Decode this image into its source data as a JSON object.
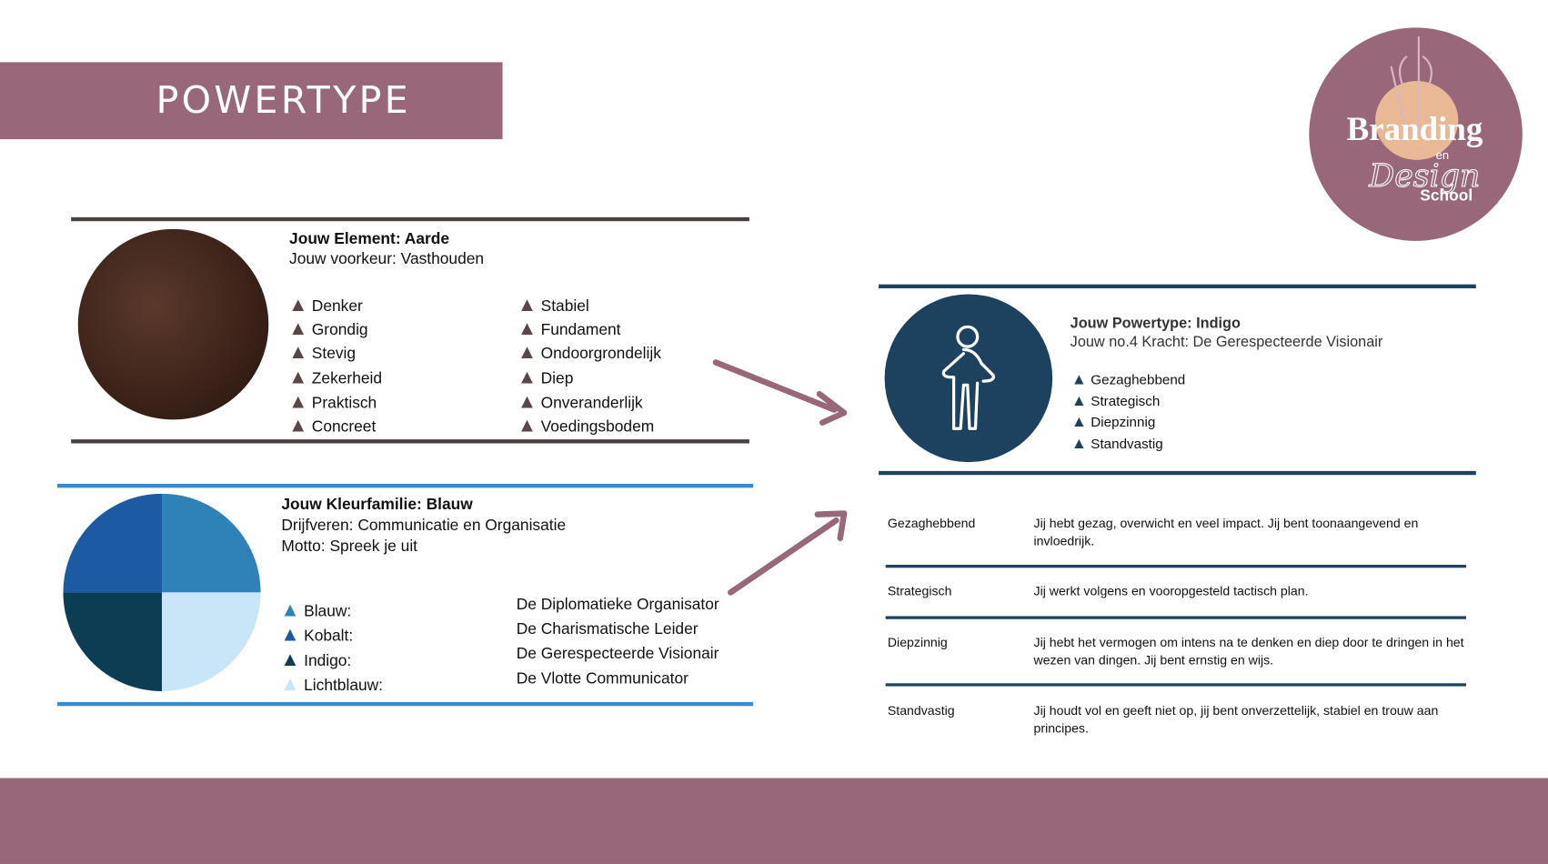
{
  "header": {
    "title": "POWERTYPE"
  },
  "logo": {
    "text": [
      "Branding",
      "en",
      "Design",
      "School"
    ]
  },
  "colors": {
    "mauve": "#98677a",
    "earth_line": "#4a4040",
    "navy": "#1c4260",
    "blue_line": "#3d89c9"
  },
  "element": {
    "heading": "Jouw Element: Aarde",
    "preference": "Jouw voorkeur: Vasthouden",
    "traits_left": [
      "Denker",
      "Grondig",
      "Stevig",
      "Zekerheid",
      "Praktisch",
      "Concreet"
    ],
    "traits_right": [
      "Stabiel",
      "Fundament",
      "Ondoorgrondelijk",
      "Diep",
      "Onveranderlijk",
      "Voedingsbodem"
    ]
  },
  "color_family": {
    "heading": "Jouw Kleurfamilie: Blauw",
    "drivers": "Drijfveren: Communicatie en Organisatie",
    "motto": "Motto: Spreek je uit",
    "types": [
      {
        "name": "Blauw:",
        "role": "De Diplomatieke Organisator",
        "color": "#2e82b8"
      },
      {
        "name": "Kobalt:",
        "role": "De Charismatische Leider",
        "color": "#1c5aa4"
      },
      {
        "name": "Indigo:",
        "role": "De Gerespecteerde Visionair",
        "color": "#0d3d52"
      },
      {
        "name": "Lichtblauw:",
        "role": "De Vlotte Communicator",
        "color": "#c9e6f8"
      }
    ]
  },
  "powertype": {
    "heading": "Jouw Powertype: Indigo",
    "strength": "Jouw no.4 Kracht: De Gerespecteerde Visionair",
    "traits": [
      "Gezaghebbend",
      "Strategisch",
      "Diepzinnig",
      "Standvastig"
    ],
    "icon": "person-icon"
  },
  "table": [
    {
      "label": "Gezaghebbend",
      "desc": "Jij hebt gezag, overwicht en veel impact. Jij bent toonaangevend en invloedrijk."
    },
    {
      "label": "Strategisch",
      "desc": "Jij werkt volgens en vooropgesteld tactisch plan."
    },
    {
      "label": "Diepzinnig",
      "desc": "Jij hebt het vermogen om intens na te denken en diep door te dringen in het wezen van dingen. Jij bent ernstig en wijs."
    },
    {
      "label": "Standvastig",
      "desc": "Jij houdt vol en geeft niet op, jij bent onverzettelijk, stabiel en trouw aan principes."
    }
  ]
}
